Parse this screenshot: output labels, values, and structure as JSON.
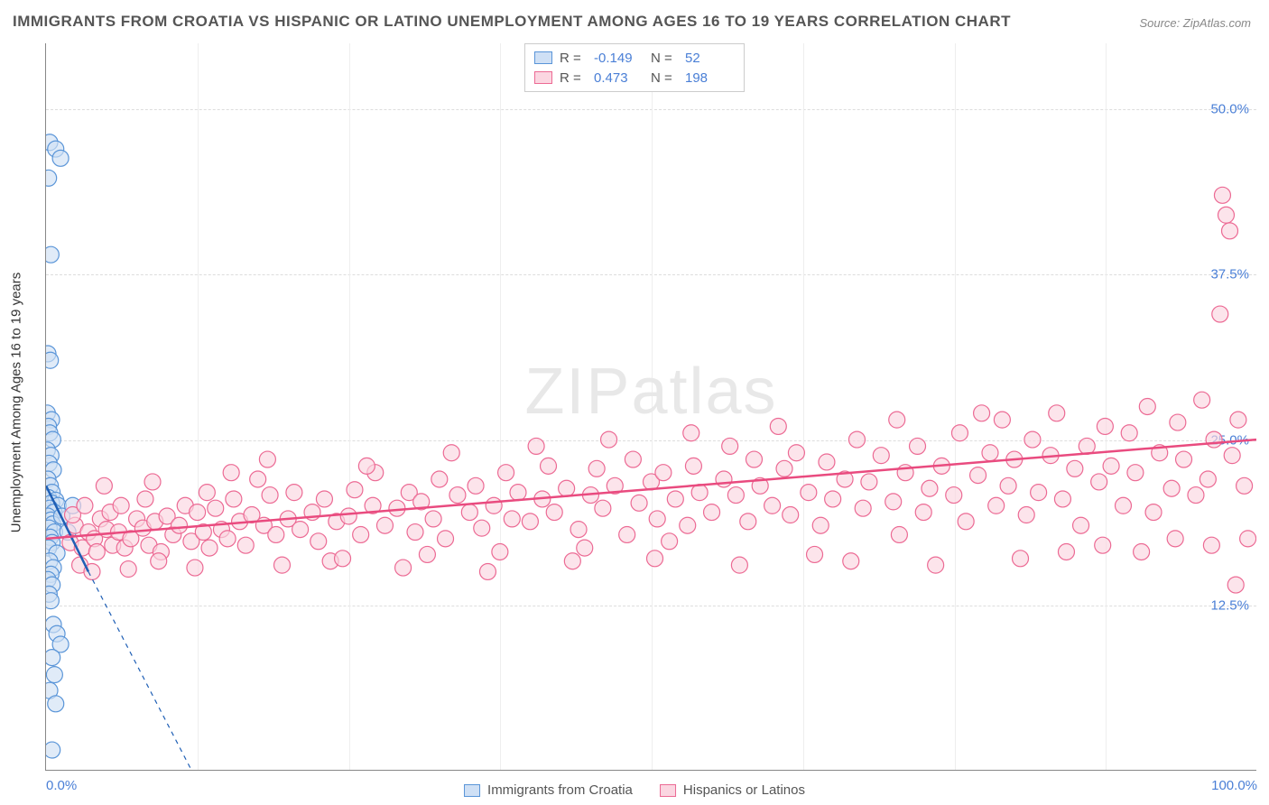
{
  "title": "IMMIGRANTS FROM CROATIA VS HISPANIC OR LATINO UNEMPLOYMENT AMONG AGES 16 TO 19 YEARS CORRELATION CHART",
  "source": "Source: ZipAtlas.com",
  "ylabel": "Unemployment Among Ages 16 to 19 years",
  "watermark_a": "ZIP",
  "watermark_b": "atlas",
  "chart": {
    "type": "scatter",
    "xlim": [
      0,
      100
    ],
    "ylim": [
      0,
      55
    ],
    "xticks": [
      0,
      100
    ],
    "xtick_labels": [
      "0.0%",
      "100.0%"
    ],
    "xtick_minor": [
      12.5,
      25,
      37.5,
      50,
      62.5,
      75,
      87.5
    ],
    "yticks": [
      12.5,
      25,
      37.5,
      50
    ],
    "ytick_labels": [
      "12.5%",
      "25.0%",
      "37.5%",
      "50.0%"
    ],
    "grid_color": "#dddddd",
    "background_color": "#ffffff",
    "marker_radius": 9,
    "marker_stroke_width": 1.2,
    "trend_line_width": 2.5,
    "series": [
      {
        "name": "Immigrants from Croatia",
        "fill": "#cfe0f5",
        "stroke": "#5a95d8",
        "trend_color": "#1f5fb5",
        "R": "-0.149",
        "N": "52",
        "trend": {
          "x1": 0,
          "y1": 21.5,
          "x2": 3.5,
          "y2": 15.0,
          "dash_x2": 12,
          "dash_y2": 0
        },
        "points": [
          [
            0.3,
            47.5
          ],
          [
            0.8,
            47.0
          ],
          [
            1.2,
            46.3
          ],
          [
            0.2,
            44.8
          ],
          [
            0.4,
            39.0
          ],
          [
            0.15,
            31.5
          ],
          [
            0.35,
            31.0
          ],
          [
            0.1,
            27.0
          ],
          [
            0.45,
            26.5
          ],
          [
            0.2,
            26.0
          ],
          [
            0.3,
            25.5
          ],
          [
            0.55,
            25.0
          ],
          [
            0.1,
            24.2
          ],
          [
            0.4,
            23.8
          ],
          [
            0.25,
            23.2
          ],
          [
            0.6,
            22.7
          ],
          [
            0.15,
            22.0
          ],
          [
            0.35,
            21.5
          ],
          [
            0.5,
            21.0
          ],
          [
            0.2,
            20.6
          ],
          [
            0.8,
            20.4
          ],
          [
            0.45,
            20.2
          ],
          [
            1.0,
            20.0
          ],
          [
            0.3,
            19.8
          ],
          [
            0.65,
            19.5
          ],
          [
            0.15,
            19.2
          ],
          [
            0.4,
            18.9
          ],
          [
            0.55,
            18.6
          ],
          [
            0.25,
            18.3
          ],
          [
            0.7,
            18.0
          ],
          [
            0.35,
            17.6
          ],
          [
            0.5,
            17.2
          ],
          [
            0.2,
            16.8
          ],
          [
            0.9,
            16.4
          ],
          [
            0.3,
            15.8
          ],
          [
            0.6,
            15.3
          ],
          [
            0.4,
            14.8
          ],
          [
            0.15,
            14.4
          ],
          [
            0.5,
            14.0
          ],
          [
            1.3,
            19.2
          ],
          [
            1.8,
            18.0
          ],
          [
            2.2,
            20.0
          ],
          [
            0.25,
            13.3
          ],
          [
            0.4,
            12.8
          ],
          [
            0.6,
            11.0
          ],
          [
            0.9,
            10.3
          ],
          [
            1.2,
            9.5
          ],
          [
            0.5,
            8.5
          ],
          [
            0.7,
            7.2
          ],
          [
            0.3,
            6.0
          ],
          [
            0.8,
            5.0
          ],
          [
            0.5,
            1.5
          ]
        ]
      },
      {
        "name": "Hispanics or Latinos",
        "fill": "#fbd6e1",
        "stroke": "#ec6a94",
        "trend_color": "#e94b7f",
        "R": "0.473",
        "N": "198",
        "trend": {
          "x1": 0,
          "y1": 17.5,
          "x2": 100,
          "y2": 25.0
        },
        "points": [
          [
            2,
            17.2
          ],
          [
            2.4,
            18.5
          ],
          [
            2.2,
            19.3
          ],
          [
            3,
            16.8
          ],
          [
            3.5,
            18.0
          ],
          [
            3.2,
            20.0
          ],
          [
            4,
            17.5
          ],
          [
            4.5,
            19.0
          ],
          [
            4.2,
            16.5
          ],
          [
            5,
            18.2
          ],
          [
            5.5,
            17.0
          ],
          [
            5.3,
            19.5
          ],
          [
            6,
            18.0
          ],
          [
            6.5,
            16.8
          ],
          [
            6.2,
            20.0
          ],
          [
            7,
            17.5
          ],
          [
            7.5,
            19.0
          ],
          [
            8,
            18.3
          ],
          [
            8.5,
            17.0
          ],
          [
            8.2,
            20.5
          ],
          [
            9,
            18.8
          ],
          [
            9.5,
            16.5
          ],
          [
            10,
            19.2
          ],
          [
            10.5,
            17.8
          ],
          [
            11,
            18.5
          ],
          [
            11.5,
            20.0
          ],
          [
            12,
            17.3
          ],
          [
            12.5,
            19.5
          ],
          [
            13,
            18.0
          ],
          [
            13.5,
            16.8
          ],
          [
            14,
            19.8
          ],
          [
            14.5,
            18.2
          ],
          [
            15,
            17.5
          ],
          [
            15.5,
            20.5
          ],
          [
            16,
            18.8
          ],
          [
            16.5,
            17.0
          ],
          [
            17,
            19.3
          ],
          [
            18,
            18.5
          ],
          [
            18.5,
            20.8
          ],
          [
            19,
            17.8
          ],
          [
            20,
            19.0
          ],
          [
            20.5,
            21.0
          ],
          [
            21,
            18.2
          ],
          [
            22,
            19.5
          ],
          [
            22.5,
            17.3
          ],
          [
            23,
            20.5
          ],
          [
            24,
            18.8
          ],
          [
            25,
            19.2
          ],
          [
            25.5,
            21.2
          ],
          [
            26,
            17.8
          ],
          [
            27,
            20.0
          ],
          [
            27.2,
            22.5
          ],
          [
            28,
            18.5
          ],
          [
            29,
            19.8
          ],
          [
            30,
            21.0
          ],
          [
            30.5,
            18.0
          ],
          [
            31,
            20.3
          ],
          [
            32,
            19.0
          ],
          [
            32.5,
            22.0
          ],
          [
            33,
            17.5
          ],
          [
            34,
            20.8
          ],
          [
            35,
            19.5
          ],
          [
            35.5,
            21.5
          ],
          [
            36,
            18.3
          ],
          [
            37,
            20.0
          ],
          [
            38,
            22.5
          ],
          [
            38.5,
            19.0
          ],
          [
            39,
            21.0
          ],
          [
            40,
            18.8
          ],
          [
            41,
            20.5
          ],
          [
            41.5,
            23.0
          ],
          [
            42,
            19.5
          ],
          [
            43,
            21.3
          ],
          [
            44,
            18.2
          ],
          [
            45,
            20.8
          ],
          [
            45.5,
            22.8
          ],
          [
            46,
            19.8
          ],
          [
            47,
            21.5
          ],
          [
            48,
            17.8
          ],
          [
            48.5,
            23.5
          ],
          [
            49,
            20.2
          ],
          [
            50,
            21.8
          ],
          [
            50.5,
            19.0
          ],
          [
            51,
            22.5
          ],
          [
            52,
            20.5
          ],
          [
            53,
            18.5
          ],
          [
            53.5,
            23.0
          ],
          [
            54,
            21.0
          ],
          [
            55,
            19.5
          ],
          [
            56,
            22.0
          ],
          [
            56.5,
            24.5
          ],
          [
            57,
            20.8
          ],
          [
            58,
            18.8
          ],
          [
            58.5,
            23.5
          ],
          [
            59,
            21.5
          ],
          [
            60,
            20.0
          ],
          [
            61,
            22.8
          ],
          [
            61.5,
            19.3
          ],
          [
            62,
            24.0
          ],
          [
            63,
            21.0
          ],
          [
            64,
            18.5
          ],
          [
            64.5,
            23.3
          ],
          [
            65,
            20.5
          ],
          [
            66,
            22.0
          ],
          [
            67,
            25.0
          ],
          [
            67.5,
            19.8
          ],
          [
            68,
            21.8
          ],
          [
            69,
            23.8
          ],
          [
            70,
            20.3
          ],
          [
            70.5,
            17.8
          ],
          [
            71,
            22.5
          ],
          [
            72,
            24.5
          ],
          [
            72.5,
            19.5
          ],
          [
            73,
            21.3
          ],
          [
            74,
            23.0
          ],
          [
            75,
            20.8
          ],
          [
            75.5,
            25.5
          ],
          [
            76,
            18.8
          ],
          [
            77,
            22.3
          ],
          [
            78,
            24.0
          ],
          [
            78.5,
            20.0
          ],
          [
            79,
            26.5
          ],
          [
            79.5,
            21.5
          ],
          [
            80,
            23.5
          ],
          [
            81,
            19.3
          ],
          [
            81.5,
            25.0
          ],
          [
            82,
            21.0
          ],
          [
            83,
            23.8
          ],
          [
            83.5,
            27.0
          ],
          [
            84,
            20.5
          ],
          [
            85,
            22.8
          ],
          [
            85.5,
            18.5
          ],
          [
            86,
            24.5
          ],
          [
            87,
            21.8
          ],
          [
            87.5,
            26.0
          ],
          [
            88,
            23.0
          ],
          [
            89,
            20.0
          ],
          [
            89.5,
            25.5
          ],
          [
            90,
            22.5
          ],
          [
            91,
            27.5
          ],
          [
            91.5,
            19.5
          ],
          [
            92,
            24.0
          ],
          [
            93,
            21.3
          ],
          [
            93.5,
            26.3
          ],
          [
            94,
            23.5
          ],
          [
            95,
            20.8
          ],
          [
            95.5,
            28.0
          ],
          [
            96,
            22.0
          ],
          [
            96.5,
            25.0
          ],
          [
            97,
            34.5
          ],
          [
            97.2,
            43.5
          ],
          [
            97.5,
            42.0
          ],
          [
            97.8,
            40.8
          ],
          [
            98,
            23.8
          ],
          [
            98.3,
            14.0
          ],
          [
            98.5,
            26.5
          ],
          [
            99,
            21.5
          ],
          [
            2.8,
            15.5
          ],
          [
            3.8,
            15.0
          ],
          [
            6.8,
            15.2
          ],
          [
            9.3,
            15.8
          ],
          [
            12.3,
            15.3
          ],
          [
            15.3,
            22.5
          ],
          [
            17.5,
            22.0
          ],
          [
            19.5,
            15.5
          ],
          [
            23.5,
            15.8
          ],
          [
            26.5,
            23.0
          ],
          [
            29.5,
            15.3
          ],
          [
            33.5,
            24.0
          ],
          [
            36.5,
            15.0
          ],
          [
            40.5,
            24.5
          ],
          [
            43.5,
            15.8
          ],
          [
            46.5,
            25.0
          ],
          [
            50.3,
            16.0
          ],
          [
            53.3,
            25.5
          ],
          [
            57.3,
            15.5
          ],
          [
            60.5,
            26.0
          ],
          [
            63.5,
            16.3
          ],
          [
            66.5,
            15.8
          ],
          [
            70.3,
            26.5
          ],
          [
            73.5,
            15.5
          ],
          [
            77.3,
            27.0
          ],
          [
            80.5,
            16.0
          ],
          [
            84.3,
            16.5
          ],
          [
            87.3,
            17.0
          ],
          [
            90.5,
            16.5
          ],
          [
            93.3,
            17.5
          ],
          [
            96.3,
            17.0
          ],
          [
            99.3,
            17.5
          ],
          [
            4.8,
            21.5
          ],
          [
            8.8,
            21.8
          ],
          [
            13.3,
            21.0
          ],
          [
            18.3,
            23.5
          ],
          [
            24.5,
            16.0
          ],
          [
            31.5,
            16.3
          ],
          [
            37.5,
            16.5
          ],
          [
            44.5,
            16.8
          ],
          [
            51.5,
            17.3
          ]
        ]
      }
    ]
  },
  "legend_top": {
    "rows": [
      {
        "series_idx": 0,
        "r_label": "R =",
        "n_label": "N ="
      },
      {
        "series_idx": 1,
        "r_label": "R =",
        "n_label": "N ="
      }
    ]
  }
}
